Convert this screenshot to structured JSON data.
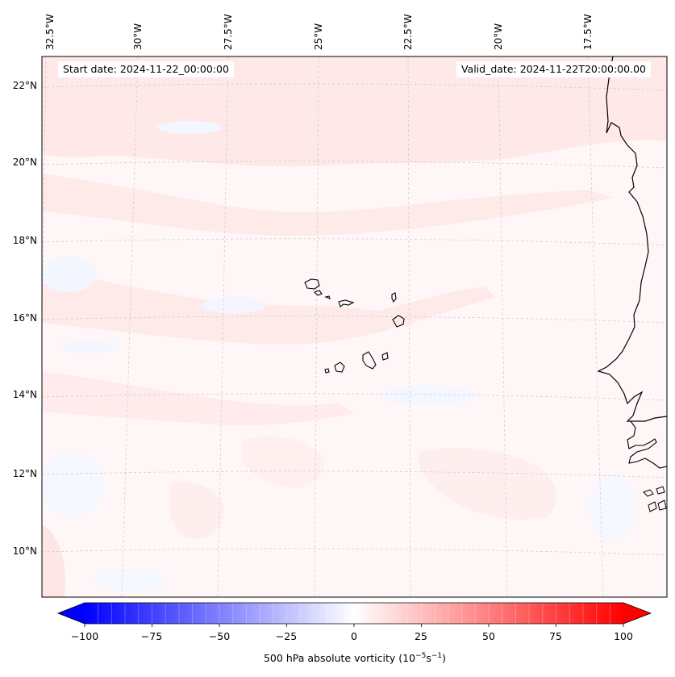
{
  "title": {
    "start_date": "Start date: 2024-11-22_00:00:00",
    "valid_date": "Valid_date: 2024-11-22T20:00:00.00"
  },
  "map": {
    "region": "Eastern tropical Atlantic (Cape Verde Islands and West African coast)",
    "longitude_labels": [
      "32.5°W",
      "30°W",
      "27.5°W",
      "25°W",
      "22.5°W",
      "20°W",
      "17.5°W"
    ],
    "latitude_labels": [
      "22°N",
      "20°N",
      "18°N",
      "16°N",
      "14°N",
      "12°N",
      "10°N"
    ],
    "gridlines": true,
    "field": "500 hPa absolute vorticity",
    "colors": {
      "coastline": "#000000",
      "gridline": "#c8c8c8",
      "weak_positive": "#ffe8e8",
      "weak_negative": "#f4f7ff",
      "background": "#fff7f7"
    }
  },
  "colorbar": {
    "label_prefix": "500 hPa absolute vorticity (10",
    "label_exp1": "−5",
    "label_mid": "s",
    "label_exp2": "−1",
    "label_suffix": ")",
    "ticks": [
      "−100",
      "−75",
      "−50",
      "−25",
      "0",
      "25",
      "50",
      "75",
      "100"
    ],
    "min": -100,
    "max": 100,
    "colormap": "bwr",
    "extend": "both",
    "colors": {
      "negative_end": "#0000ff",
      "center": "#ffffff",
      "positive_end": "#ff0000"
    }
  }
}
